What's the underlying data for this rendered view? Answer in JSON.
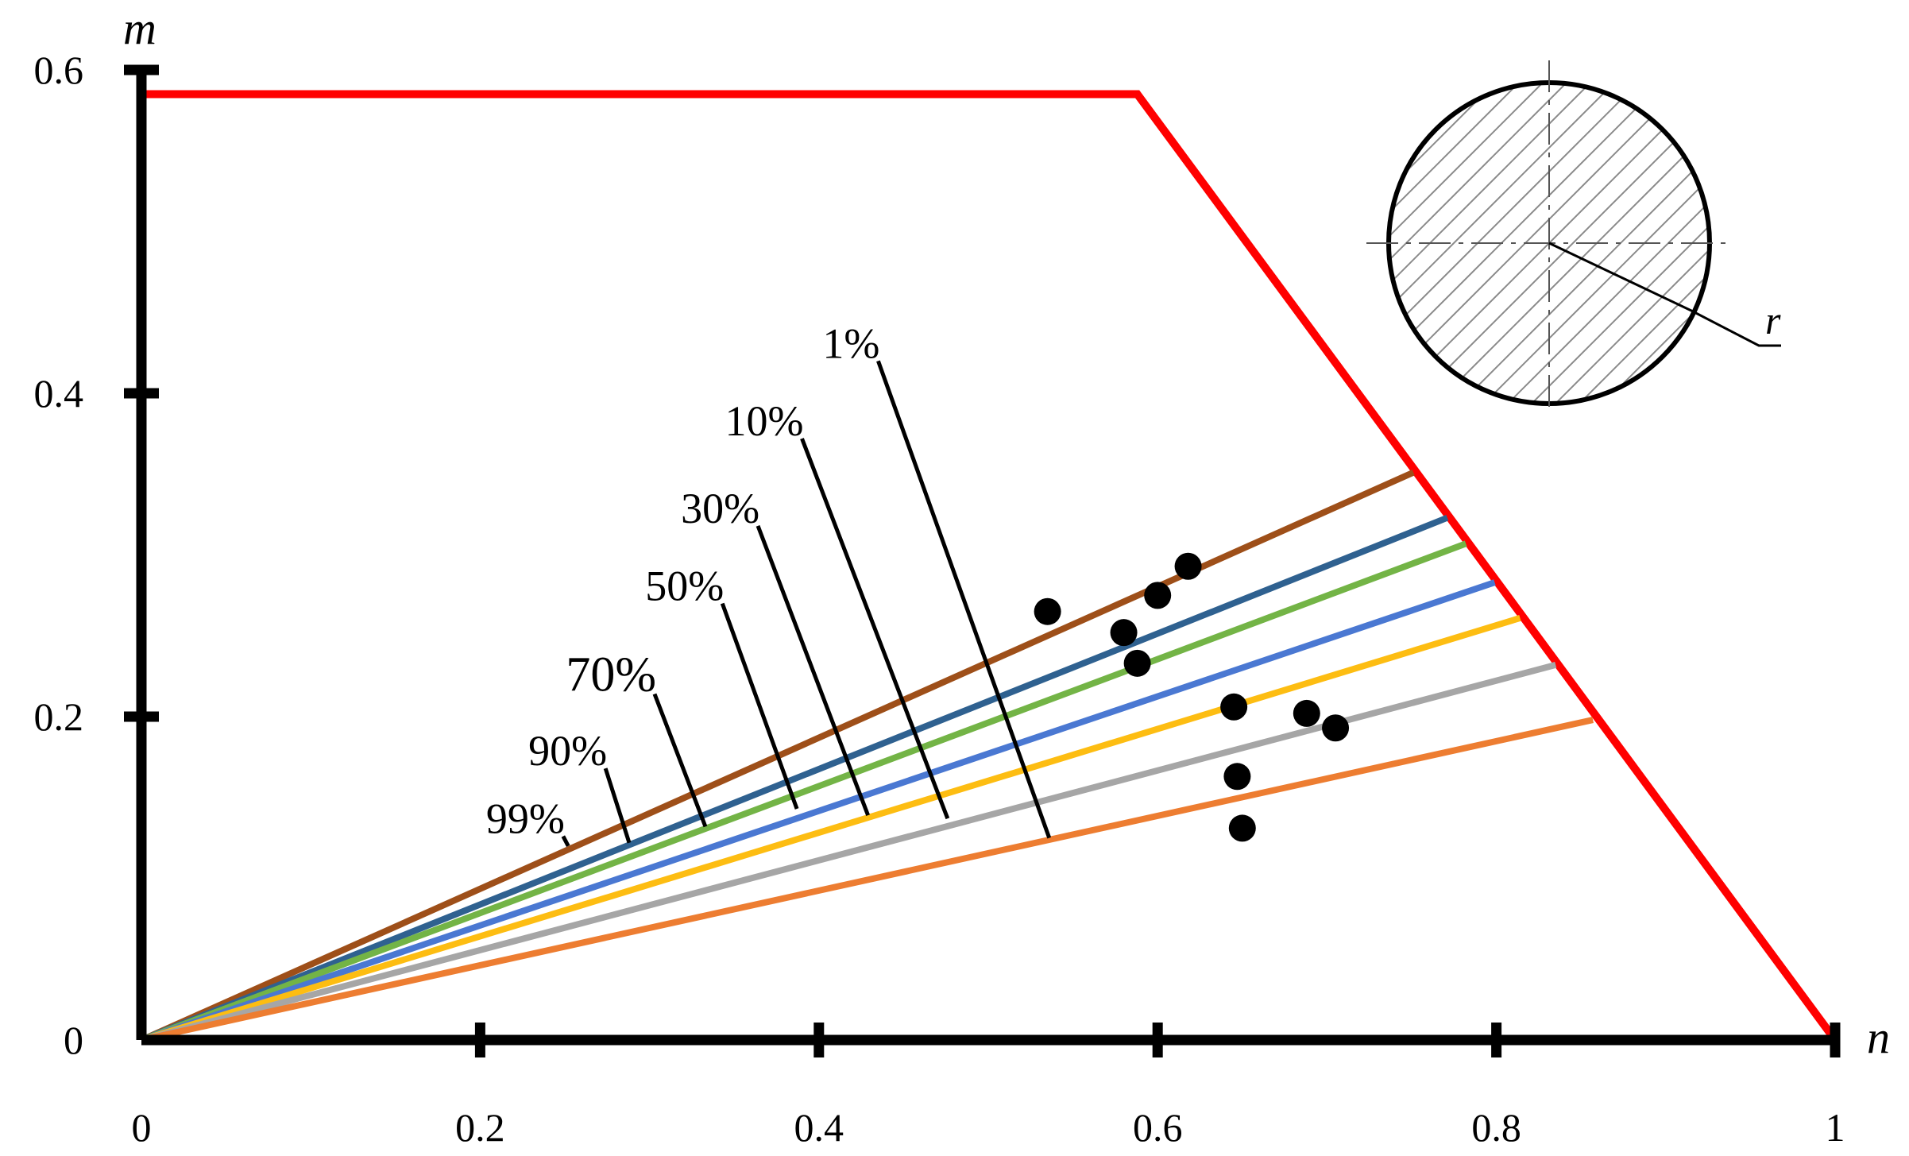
{
  "chart_data": {
    "type": "line",
    "title": "",
    "xlabel": "n",
    "ylabel": "m",
    "xlim": [
      0,
      1
    ],
    "ylim": [
      0,
      0.6
    ],
    "x_ticks": [
      "0",
      "0.2",
      "0.4",
      "0.6",
      "0.8",
      "1"
    ],
    "y_ticks": [
      "0",
      "0.2",
      "0.4",
      "0.6"
    ],
    "grid": false,
    "legend": "none",
    "boundary": {
      "color": "#ff0000",
      "points": [
        [
          0,
          0.585
        ],
        [
          0.588,
          0.585
        ],
        [
          1.0,
          0.0
        ]
      ]
    },
    "series": [
      {
        "name": "99%",
        "color": "#9e4f19",
        "x": [
          0,
          0.751
        ],
        "y": [
          0,
          0.351
        ]
      },
      {
        "name": "90%",
        "color": "#2f6190",
        "x": [
          0,
          0.771
        ],
        "y": [
          0,
          0.323
        ]
      },
      {
        "name": "70%",
        "color": "#73b446",
        "x": [
          0,
          0.782
        ],
        "y": [
          0,
          0.307
        ]
      },
      {
        "name": "50%",
        "color": "#4a78d2",
        "x": [
          0,
          0.799
        ],
        "y": [
          0,
          0.283
        ]
      },
      {
        "name": "30%",
        "color": "#fdbd12",
        "x": [
          0,
          0.814
        ],
        "y": [
          0,
          0.261
        ]
      },
      {
        "name": "10%",
        "color": "#a6a6a6",
        "x": [
          0,
          0.835
        ],
        "y": [
          0,
          0.232
        ]
      },
      {
        "name": "1%",
        "color": "#ed7d31",
        "x": [
          0,
          0.857
        ],
        "y": [
          0,
          0.198
        ]
      }
    ],
    "scatter_points": {
      "color": "#000000",
      "points": [
        [
          0.535,
          0.265
        ],
        [
          0.58,
          0.252
        ],
        [
          0.6,
          0.275
        ],
        [
          0.618,
          0.293
        ],
        [
          0.588,
          0.233
        ],
        [
          0.645,
          0.206
        ],
        [
          0.688,
          0.202
        ],
        [
          0.705,
          0.193
        ],
        [
          0.647,
          0.163
        ],
        [
          0.65,
          0.131
        ]
      ]
    },
    "annotations": [
      {
        "text": "1%",
        "font_size": 54,
        "from": [
          0.435,
          0.42
        ],
        "to": [
          0.536,
          0.125
        ]
      },
      {
        "text": "10%",
        "font_size": 54,
        "from": [
          0.39,
          0.372
        ],
        "to": [
          0.476,
          0.137
        ]
      },
      {
        "text": "30%",
        "font_size": 54,
        "from": [
          0.364,
          0.318
        ],
        "to": [
          0.429,
          0.139
        ]
      },
      {
        "text": "50%",
        "font_size": 54,
        "from": [
          0.343,
          0.27
        ],
        "to": [
          0.387,
          0.143
        ]
      },
      {
        "text": "70%",
        "font_size": 62,
        "from": [
          0.303,
          0.214
        ],
        "to": [
          0.333,
          0.132
        ]
      },
      {
        "text": "90%",
        "font_size": 54,
        "from": [
          0.274,
          0.168
        ],
        "to": [
          0.288,
          0.122
        ]
      },
      {
        "text": "99%",
        "font_size": 54,
        "from": [
          0.249,
          0.126
        ],
        "to": [
          0.252,
          0.12
        ]
      }
    ],
    "inset": {
      "shape": "circle-cross-section",
      "radius_label": "r"
    }
  }
}
